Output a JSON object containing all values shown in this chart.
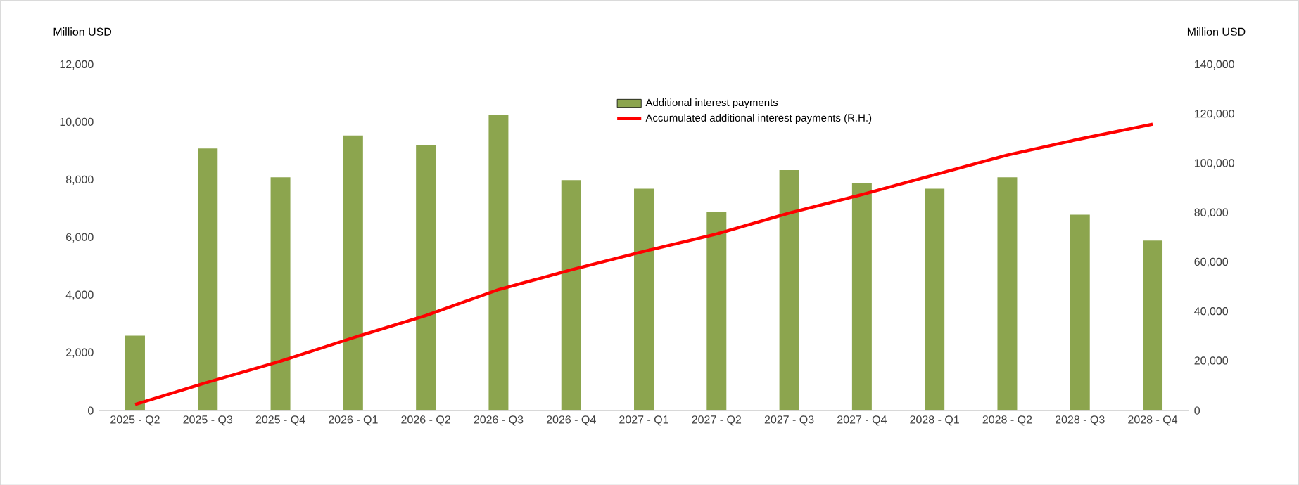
{
  "chart_data": {
    "type": "bar",
    "categories": [
      "2025 - Q2",
      "2025 - Q3",
      "2025 - Q4",
      "2026 - Q1",
      "2026 - Q2",
      "2026 - Q3",
      "2026 - Q4",
      "2027 - Q1",
      "2027 - Q2",
      "2027 - Q3",
      "2027 - Q4",
      "2028 - Q1",
      "2028 - Q2",
      "2028 - Q3",
      "2028 - Q4"
    ],
    "ylabel": "Million USD",
    "y2label": "Million USD",
    "series": [
      {
        "name": "Additional interest payments",
        "axis": "y",
        "color": "#8ca54e",
        "values": [
          2600,
          9100,
          8100,
          9550,
          9200,
          10250,
          8000,
          7700,
          6900,
          8350,
          7900,
          7700,
          8100,
          6800,
          5900
        ]
      },
      {
        "name": "Accumulated additional interest payments (R.H.)",
        "type": "line",
        "axis": "y2",
        "color": "#ff0000",
        "values": [
          2500,
          11500,
          20000,
          29500,
          38500,
          49000,
          57000,
          64500,
          71500,
          80000,
          87500,
          95500,
          103500,
          110000,
          116000
        ]
      }
    ],
    "ylim": [
      0,
      12000
    ],
    "yticks": [
      {
        "value": 0,
        "label": "0"
      },
      {
        "value": 2000,
        "label": "2,000"
      },
      {
        "value": 4000,
        "label": "4,000"
      },
      {
        "value": 6000,
        "label": "6,000"
      },
      {
        "value": 8000,
        "label": "8,000"
      },
      {
        "value": 10000,
        "label": "10,000"
      },
      {
        "value": 12000,
        "label": "12,000"
      }
    ],
    "y2lim": [
      0,
      140000
    ],
    "y2ticks": [
      {
        "value": 0,
        "label": "0"
      },
      {
        "value": 20000,
        "label": "20,000"
      },
      {
        "value": 40000,
        "label": "40,000"
      },
      {
        "value": 60000,
        "label": "60,000"
      },
      {
        "value": 80000,
        "label": "80,000"
      },
      {
        "value": 100000,
        "label": "100,000"
      },
      {
        "value": 120000,
        "label": "120,000"
      },
      {
        "value": 140000,
        "label": "140,000"
      }
    ],
    "legend": "top",
    "marker": "none",
    "line_style": "solid"
  }
}
